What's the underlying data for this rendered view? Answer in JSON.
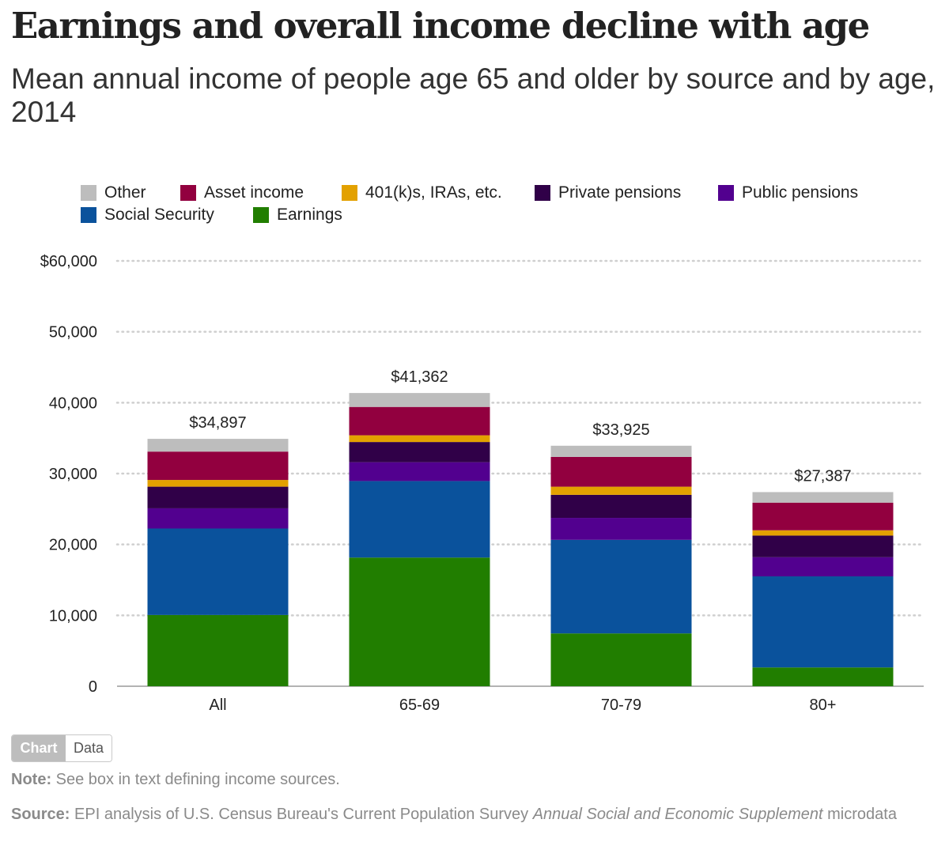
{
  "title": "Earnings and overall income decline with age",
  "subtitle": "Mean annual income of people age 65 and older by source and by age, 2014",
  "legend": [
    {
      "label": "Other",
      "color": "#bdbdbd"
    },
    {
      "label": "Asset income",
      "color": "#92003f"
    },
    {
      "label": "401(k)s, IRAs, etc.",
      "color": "#e3a100"
    },
    {
      "label": "Private pensions",
      "color": "#300048"
    },
    {
      "label": "Public pensions",
      "color": "#52008f"
    },
    {
      "label": "Social Security",
      "color": "#0a529c"
    },
    {
      "label": "Earnings",
      "color": "#217e00"
    }
  ],
  "toggle": {
    "chart_label": "Chart",
    "data_label": "Data"
  },
  "note": {
    "label": "Note:",
    "text": " See box in text defining income sources."
  },
  "source": {
    "label": "Source:",
    "text": " EPI analysis of U.S. Census Bureau's Current Population Survey ",
    "italic": "Annual Social and Economic Supplement",
    "text_end": " microdata"
  },
  "chart_data": {
    "type": "bar",
    "stacked": true,
    "categories": [
      "All",
      "65-69",
      "70-79",
      "80+"
    ],
    "totals": [
      34897,
      41362,
      33925,
      27387
    ],
    "total_labels": [
      "$34,897",
      "$41,362",
      "$33,925",
      "$27,387"
    ],
    "series": [
      {
        "name": "Earnings",
        "color": "#217e00",
        "values": [
          10050,
          18150,
          7450,
          2650
        ]
      },
      {
        "name": "Social Security",
        "color": "#0a529c",
        "values": [
          12200,
          10800,
          13200,
          12850
        ]
      },
      {
        "name": "Public pensions",
        "color": "#52008f",
        "values": [
          2850,
          2650,
          3100,
          2700
        ]
      },
      {
        "name": "Private pensions",
        "color": "#300048",
        "values": [
          3050,
          2850,
          3250,
          3050
        ]
      },
      {
        "name": "401(k)s, IRAs, etc.",
        "color": "#e3a100",
        "values": [
          950,
          950,
          1150,
          750
        ]
      },
      {
        "name": "Asset income",
        "color": "#92003f",
        "values": [
          4000,
          4000,
          4200,
          3900
        ]
      },
      {
        "name": "Other",
        "color": "#bdbdbd",
        "values": [
          1797,
          1962,
          1575,
          1487
        ]
      }
    ],
    "ylim": [
      0,
      60000
    ],
    "yticks": [
      0,
      10000,
      20000,
      30000,
      40000,
      50000,
      60000
    ],
    "ytick_labels": [
      "0",
      "10,000",
      "20,000",
      "30,000",
      "40,000",
      "50,000",
      "$60,000"
    ],
    "grid": true,
    "legend_position": "top-left"
  }
}
